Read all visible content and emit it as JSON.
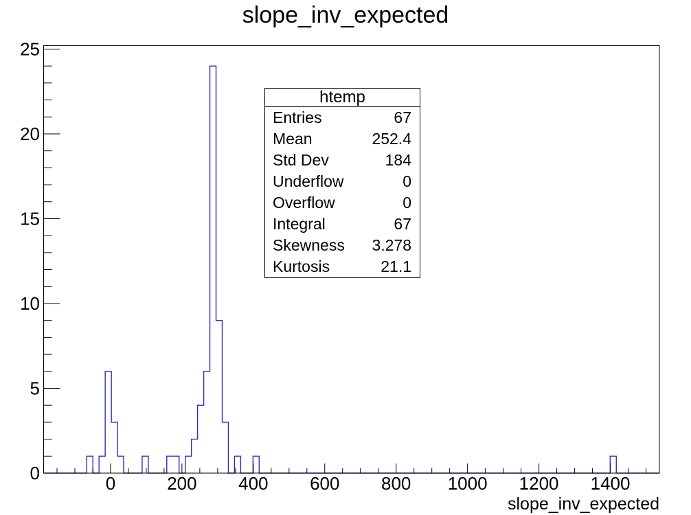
{
  "chart_data": {
    "type": "bar",
    "subtype": "step-histogram",
    "title": "slope_inv_expected",
    "xlabel": "slope_inv_expected",
    "ylabel": "",
    "grid": false,
    "legend": "none",
    "xlim": [
      -187.5,
      1537.5
    ],
    "ylim": [
      0,
      25.2
    ],
    "x_ticks": {
      "major_step": 200,
      "minor_step": 50,
      "labels": [
        {
          "value": 0,
          "label": "0"
        },
        {
          "value": 200,
          "label": "200"
        },
        {
          "value": 400,
          "label": "400"
        },
        {
          "value": 600,
          "label": "600"
        },
        {
          "value": 800,
          "label": "800"
        },
        {
          "value": 1000,
          "label": "1000"
        },
        {
          "value": 1200,
          "label": "1200"
        },
        {
          "value": 1400,
          "label": "1400"
        }
      ]
    },
    "y_ticks": {
      "major_step": 5,
      "minor_step": 1,
      "labels": [
        {
          "value": 0,
          "label": "0"
        },
        {
          "value": 5,
          "label": "5"
        },
        {
          "value": 10,
          "label": "10"
        },
        {
          "value": 15,
          "label": "15"
        },
        {
          "value": 20,
          "label": "20"
        },
        {
          "value": 25,
          "label": "25"
        }
      ]
    },
    "histogram": {
      "n_bins": 100,
      "xmin": -187.5,
      "bin_width": 17.25,
      "total_entries": 67,
      "nonzero_bins": [
        {
          "x_low": -66.75,
          "x_high": -49.5,
          "count": 1
        },
        {
          "x_low": -32.25,
          "x_high": -15.0,
          "count": 1
        },
        {
          "x_low": -15.0,
          "x_high": 2.25,
          "count": 6
        },
        {
          "x_low": 2.25,
          "x_high": 19.5,
          "count": 3
        },
        {
          "x_low": 19.5,
          "x_high": 36.75,
          "count": 1
        },
        {
          "x_low": 88.5,
          "x_high": 105.75,
          "count": 1
        },
        {
          "x_low": 157.5,
          "x_high": 174.75,
          "count": 1
        },
        {
          "x_low": 174.75,
          "x_high": 192.0,
          "count": 1
        },
        {
          "x_low": 209.25,
          "x_high": 226.5,
          "count": 1
        },
        {
          "x_low": 226.5,
          "x_high": 243.75,
          "count": 2
        },
        {
          "x_low": 243.75,
          "x_high": 261.0,
          "count": 4
        },
        {
          "x_low": 261.0,
          "x_high": 278.25,
          "count": 6
        },
        {
          "x_low": 278.25,
          "x_high": 295.5,
          "count": 24
        },
        {
          "x_low": 295.5,
          "x_high": 312.75,
          "count": 9
        },
        {
          "x_low": 312.75,
          "x_high": 330.0,
          "count": 3
        },
        {
          "x_low": 347.25,
          "x_high": 364.5,
          "count": 1
        },
        {
          "x_low": 399.0,
          "x_high": 416.25,
          "count": 1
        },
        {
          "x_low": 1399.5,
          "x_high": 1416.75,
          "count": 1
        }
      ]
    },
    "line_color": "#2b2fb8",
    "axis_color": "#000000"
  },
  "stats_box": {
    "title": "htemp",
    "rows": [
      {
        "label": "Entries",
        "value": "67"
      },
      {
        "label": "Mean",
        "value": "252.4"
      },
      {
        "label": "Std Dev",
        "value": "184"
      },
      {
        "label": "Underflow",
        "value": "0"
      },
      {
        "label": "Overflow",
        "value": "0"
      },
      {
        "label": "Integral",
        "value": "67"
      },
      {
        "label": "Skewness",
        "value": "3.278"
      },
      {
        "label": "Kurtosis",
        "value": "21.1"
      }
    ]
  }
}
